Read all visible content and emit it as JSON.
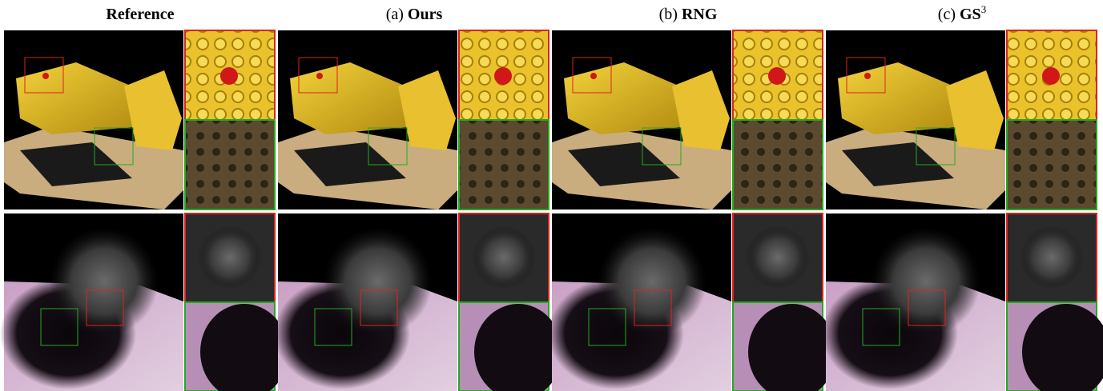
{
  "columns": [
    {
      "name": "Reference"
    },
    {
      "prefix": "(a)",
      "name": "Ours"
    },
    {
      "prefix": "(b)",
      "name": "RNG"
    },
    {
      "prefix": "(c)",
      "name": "GS",
      "superscript": "3"
    }
  ]
}
